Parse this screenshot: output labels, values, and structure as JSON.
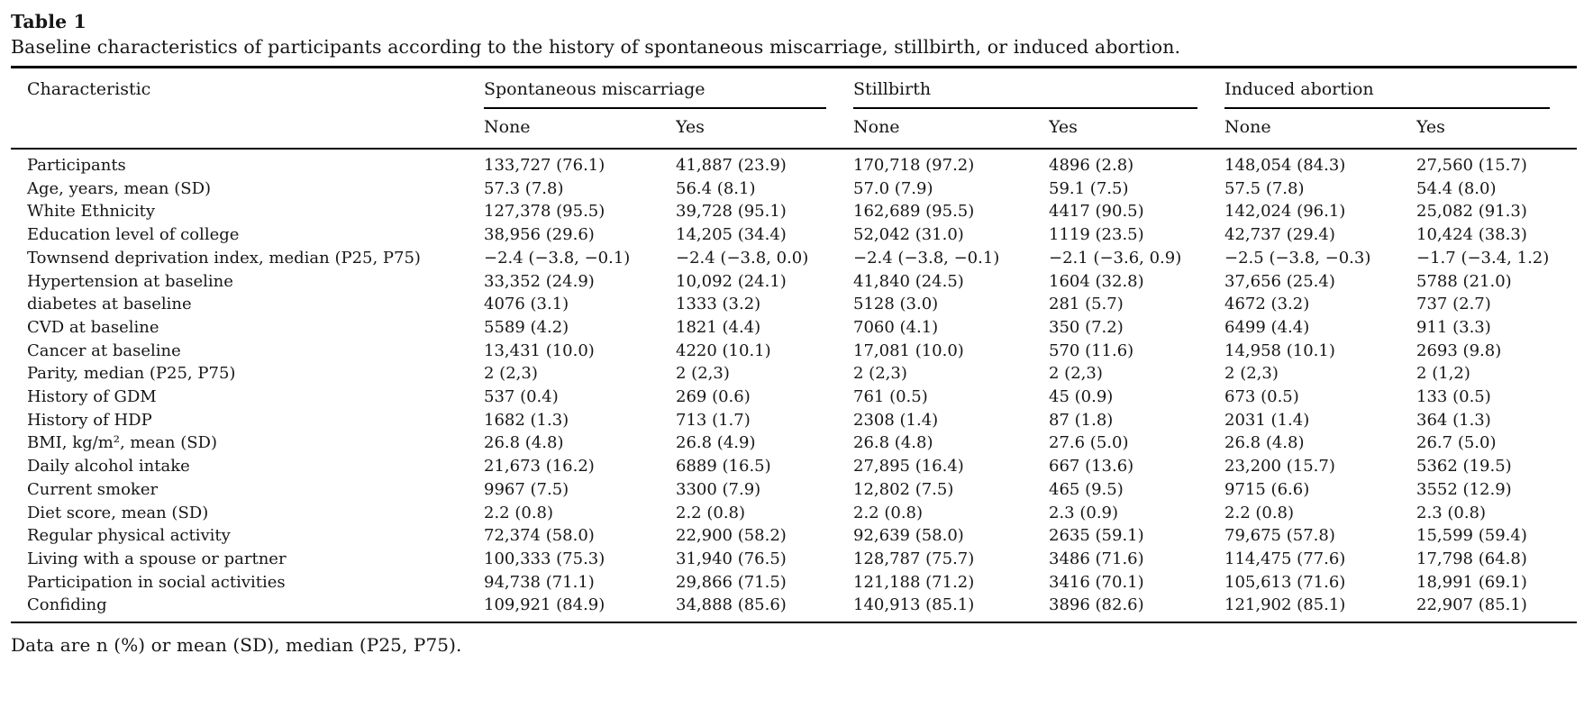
{
  "page": {
    "title": "Table 1",
    "caption": "Baseline characteristics of participants according to the history of spontaneous miscarriage, stillbirth, or induced abortion.",
    "footnote": "Data are n (%) or mean (SD), median (P25, P75)."
  },
  "table": {
    "characteristic_header": "Characteristic",
    "groups": [
      {
        "label": "Spontaneous miscarriage",
        "sub": [
          "None",
          "Yes"
        ]
      },
      {
        "label": "Stillbirth",
        "sub": [
          "None",
          "Yes"
        ]
      },
      {
        "label": "Induced abortion",
        "sub": [
          "None",
          "Yes"
        ]
      }
    ],
    "rows": [
      {
        "label": "Participants",
        "values": [
          "133,727 (76.1)",
          "41,887 (23.9)",
          "170,718 (97.2)",
          "4896 (2.8)",
          "148,054 (84.3)",
          "27,560 (15.7)"
        ]
      },
      {
        "label": "Age, years, mean (SD)",
        "values": [
          "57.3 (7.8)",
          "56.4 (8.1)",
          "57.0 (7.9)",
          "59.1 (7.5)",
          "57.5 (7.8)",
          "54.4 (8.0)"
        ]
      },
      {
        "label": "White Ethnicity",
        "values": [
          "127,378 (95.5)",
          "39,728 (95.1)",
          "162,689 (95.5)",
          "4417 (90.5)",
          "142,024 (96.1)",
          "25,082 (91.3)"
        ]
      },
      {
        "label": "Education level of college",
        "values": [
          "38,956 (29.6)",
          "14,205 (34.4)",
          "52,042 (31.0)",
          "1119 (23.5)",
          "42,737 (29.4)",
          "10,424 (38.3)"
        ]
      },
      {
        "label": "Townsend deprivation index, median (P25, P75)",
        "values": [
          "−2.4 (−3.8, −0.1)",
          "−2.4 (−3.8, 0.0)",
          "−2.4 (−3.8, −0.1)",
          "−2.1 (−3.6, 0.9)",
          "−2.5 (−3.8, −0.3)",
          "−1.7 (−3.4, 1.2)"
        ]
      },
      {
        "label": "Hypertension at baseline",
        "values": [
          "33,352 (24.9)",
          "10,092 (24.1)",
          "41,840 (24.5)",
          "1604 (32.8)",
          "37,656 (25.4)",
          "5788 (21.0)"
        ]
      },
      {
        "label": "diabetes at baseline",
        "values": [
          "4076 (3.1)",
          "1333 (3.2)",
          "5128 (3.0)",
          "281 (5.7)",
          "4672 (3.2)",
          "737 (2.7)"
        ]
      },
      {
        "label": "CVD at baseline",
        "values": [
          "5589 (4.2)",
          "1821 (4.4)",
          "7060 (4.1)",
          "350 (7.2)",
          "6499 (4.4)",
          "911 (3.3)"
        ]
      },
      {
        "label": "Cancer at baseline",
        "values": [
          "13,431 (10.0)",
          "4220 (10.1)",
          "17,081 (10.0)",
          "570 (11.6)",
          "14,958 (10.1)",
          "2693 (9.8)"
        ]
      },
      {
        "label": "Parity, median (P25, P75)",
        "values": [
          "2 (2,3)",
          "2 (2,3)",
          "2 (2,3)",
          "2 (2,3)",
          "2 (2,3)",
          "2 (1,2)"
        ]
      },
      {
        "label": "History of GDM",
        "values": [
          "537 (0.4)",
          "269 (0.6)",
          "761 (0.5)",
          "45 (0.9)",
          "673 (0.5)",
          "133 (0.5)"
        ]
      },
      {
        "label": "History of HDP",
        "values": [
          "1682 (1.3)",
          "713 (1.7)",
          "2308 (1.4)",
          "87 (1.8)",
          "2031 (1.4)",
          "364 (1.3)"
        ]
      },
      {
        "label": "BMI, kg/m², mean (SD)",
        "values": [
          "26.8 (4.8)",
          "26.8 (4.9)",
          "26.8 (4.8)",
          "27.6 (5.0)",
          "26.8 (4.8)",
          "26.7 (5.0)"
        ]
      },
      {
        "label": "Daily alcohol intake",
        "values": [
          "21,673 (16.2)",
          "6889 (16.5)",
          "27,895 (16.4)",
          "667 (13.6)",
          "23,200 (15.7)",
          "5362 (19.5)"
        ]
      },
      {
        "label": "Current smoker",
        "values": [
          "9967 (7.5)",
          "3300 (7.9)",
          "12,802 (7.5)",
          "465 (9.5)",
          "9715 (6.6)",
          "3552 (12.9)"
        ]
      },
      {
        "label": "Diet score, mean (SD)",
        "values": [
          "2.2 (0.8)",
          "2.2 (0.8)",
          "2.2 (0.8)",
          "2.3 (0.9)",
          "2.2 (0.8)",
          "2.3 (0.8)"
        ]
      },
      {
        "label": "Regular physical activity",
        "values": [
          "72,374 (58.0)",
          "22,900 (58.2)",
          "92,639 (58.0)",
          "2635 (59.1)",
          "79,675 (57.8)",
          "15,599 (59.4)"
        ]
      },
      {
        "label": "Living with a spouse or partner",
        "values": [
          "100,333 (75.3)",
          "31,940 (76.5)",
          "128,787 (75.7)",
          "3486 (71.6)",
          "114,475 (77.6)",
          "17,798 (64.8)"
        ]
      },
      {
        "label": "Participation in social activities",
        "values": [
          "94,738 (71.1)",
          "29,866 (71.5)",
          "121,188 (71.2)",
          "3416 (70.1)",
          "105,613 (71.6)",
          "18,991 (69.1)"
        ]
      },
      {
        "label": "Confiding",
        "values": [
          "109,921 (84.9)",
          "34,888 (85.6)",
          "140,913 (85.1)",
          "3896 (82.6)",
          "121,902 (85.1)",
          "22,907 (85.1)"
        ]
      }
    ]
  }
}
